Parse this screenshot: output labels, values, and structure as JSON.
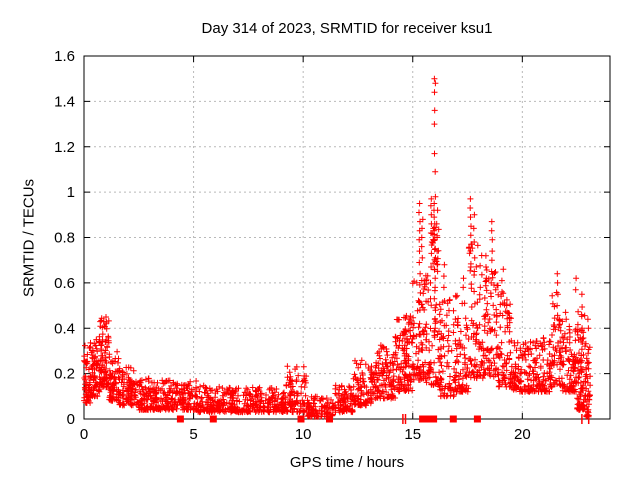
{
  "chart_data": {
    "type": "scatter",
    "title": "Day 314 of 2023, SRMTID for receiver ksu1",
    "xlabel": "GPS time / hours",
    "ylabel": "SRMTID / TECUs",
    "xlim": [
      0,
      24
    ],
    "ylim": [
      0,
      1.6
    ],
    "xticks": [
      0,
      5,
      10,
      15,
      20
    ],
    "xtick_labels": [
      "0",
      "5",
      "10",
      "15",
      "20"
    ],
    "yticks": [
      0,
      0.2,
      0.4,
      0.6,
      0.8,
      1,
      1.2,
      1.4,
      1.6
    ],
    "ytick_labels": [
      "0",
      "0.2",
      "0.4",
      "0.6",
      "0.8",
      "1",
      "1.2",
      "1.4",
      "1.6"
    ],
    "grid": true,
    "legend": "none",
    "marker": "plus",
    "marker_size": 7,
    "colors": {
      "points": "#ff0000",
      "grid": "#b9b9b9",
      "axis": "#000000",
      "text": "#000000",
      "background": "#ffffff"
    },
    "seed": 1314,
    "series": [
      {
        "name": "SRMTID",
        "description": "dense scatter of per-epoch SRMTID values; bands are [x_start, x_end, y_min, y_max, n_points] envelopes read from the plot; spike_columns are explicit outlier values",
        "bands": [
          [
            0.0,
            0.3,
            0.07,
            0.34,
            55
          ],
          [
            0.3,
            0.7,
            0.1,
            0.36,
            60
          ],
          [
            0.7,
            1.15,
            0.14,
            0.45,
            85
          ],
          [
            1.15,
            1.6,
            0.08,
            0.3,
            65
          ],
          [
            1.6,
            2.3,
            0.06,
            0.23,
            85
          ],
          [
            2.3,
            3.2,
            0.04,
            0.18,
            95
          ],
          [
            3.2,
            4.2,
            0.04,
            0.17,
            95
          ],
          [
            4.2,
            5.2,
            0.04,
            0.18,
            95
          ],
          [
            5.2,
            6.2,
            0.03,
            0.15,
            95
          ],
          [
            6.2,
            7.6,
            0.03,
            0.14,
            120
          ],
          [
            7.6,
            9.2,
            0.03,
            0.14,
            140
          ],
          [
            9.2,
            10.15,
            0.03,
            0.24,
            85
          ],
          [
            10.15,
            11.35,
            0.01,
            0.1,
            100
          ],
          [
            11.35,
            12.3,
            0.03,
            0.15,
            85
          ],
          [
            12.3,
            13.3,
            0.06,
            0.26,
            100
          ],
          [
            13.3,
            14.2,
            0.09,
            0.33,
            105
          ],
          [
            14.2,
            15.0,
            0.12,
            0.46,
            115
          ],
          [
            15.0,
            15.55,
            0.17,
            0.62,
            75
          ],
          [
            15.55,
            16.2,
            0.15,
            0.85,
            85
          ],
          [
            16.2,
            16.9,
            0.1,
            0.55,
            75
          ],
          [
            16.9,
            17.55,
            0.12,
            0.58,
            75
          ],
          [
            17.55,
            18.15,
            0.18,
            0.78,
            75
          ],
          [
            18.15,
            18.9,
            0.18,
            0.68,
            85
          ],
          [
            18.9,
            19.5,
            0.14,
            0.56,
            70
          ],
          [
            19.5,
            20.5,
            0.12,
            0.34,
            100
          ],
          [
            20.5,
            21.3,
            0.12,
            0.36,
            90
          ],
          [
            21.3,
            21.85,
            0.14,
            0.56,
            65
          ],
          [
            21.85,
            22.5,
            0.12,
            0.42,
            80
          ],
          [
            22.5,
            22.9,
            0.04,
            0.5,
            75
          ],
          [
            22.9,
            23.1,
            0.01,
            0.32,
            35
          ]
        ],
        "spike_columns": [
          [
            15.3,
            [
              0.95,
              0.91,
              0.87,
              0.83,
              0.79,
              0.74,
              0.69,
              0.64
            ]
          ],
          [
            15.45,
            [
              0.88,
              0.84,
              0.8,
              0.76,
              0.71
            ]
          ],
          [
            15.85,
            [
              0.97,
              0.94,
              0.9,
              0.86,
              0.82,
              0.78,
              0.73,
              0.67,
              0.6,
              0.53
            ]
          ],
          [
            16.0,
            [
              1.5,
              1.48,
              1.44,
              1.36,
              1.3,
              1.17,
              1.09,
              0.98,
              0.95,
              0.92,
              0.89,
              0.86,
              0.83,
              0.79,
              0.75,
              0.71,
              0.66,
              0.62,
              0.58,
              0.53,
              0.49,
              0.44,
              0.4
            ]
          ],
          [
            16.1,
            [
              0.92,
              0.86,
              0.8,
              0.74,
              0.68
            ]
          ],
          [
            16.45,
            [
              0.68,
              0.63,
              0.58,
              0.52
            ]
          ],
          [
            17.3,
            [
              0.62,
              0.58
            ]
          ],
          [
            17.65,
            [
              0.97,
              0.93,
              0.89,
              0.85,
              0.81,
              0.77
            ]
          ],
          [
            17.8,
            [
              0.9,
              0.84,
              0.78,
              0.71,
              0.65
            ]
          ],
          [
            18.35,
            [
              0.72,
              0.67,
              0.62
            ]
          ],
          [
            18.6,
            [
              0.87,
              0.83,
              0.79,
              0.74,
              0.7,
              0.65,
              0.6,
              0.54
            ]
          ],
          [
            19.1,
            [
              0.66,
              0.61,
              0.56,
              0.51
            ]
          ],
          [
            21.6,
            [
              0.64,
              0.6,
              0.55,
              0.5
            ]
          ],
          [
            22.0,
            [
              0.47,
              0.44
            ]
          ],
          [
            22.45,
            [
              0.62,
              0.57
            ]
          ],
          [
            22.7,
            [
              0.55,
              0.46,
              0.4,
              0.34,
              0.28,
              0.22,
              0.16,
              0.1,
              0.05
            ]
          ],
          [
            23.0,
            [
              0.44,
              0.4,
              0.25,
              0.18,
              0.1,
              0.04
            ]
          ]
        ],
        "zero_squares": [
          4.4,
          5.9,
          9.9,
          11.2,
          15.45,
          15.55,
          15.65,
          15.75,
          15.85,
          15.95,
          16.85,
          17.95
        ],
        "zero_ticks": [
          14.55,
          14.67,
          22.72,
          23.03
        ]
      }
    ]
  }
}
